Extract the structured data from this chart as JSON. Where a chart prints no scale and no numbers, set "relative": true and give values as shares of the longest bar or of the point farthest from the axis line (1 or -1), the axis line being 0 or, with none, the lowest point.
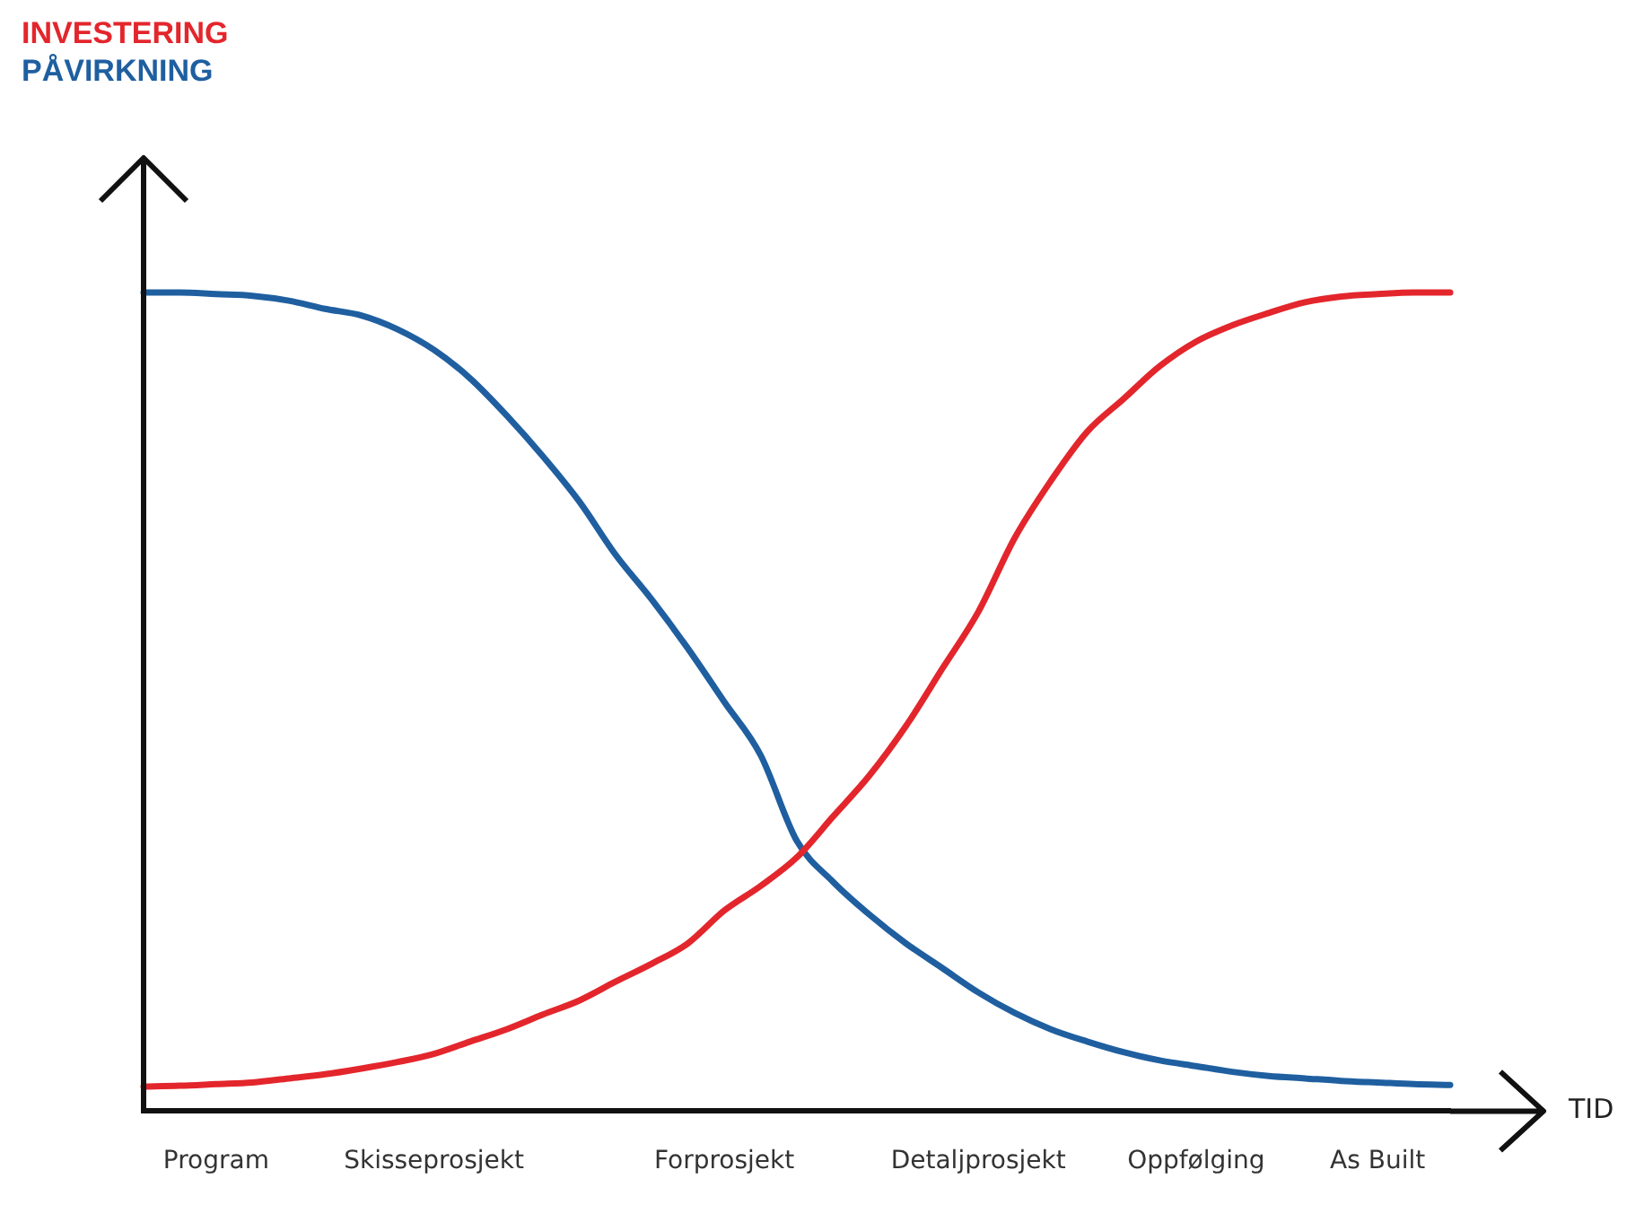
{
  "chart_data": {
    "type": "line",
    "relative": true,
    "xlabel": "TID",
    "categories": [
      null,
      null,
      "Program",
      null,
      null,
      null,
      null,
      null,
      "Skisseprosjekt",
      null,
      null,
      null,
      null,
      null,
      null,
      null,
      "Forprosjekt",
      null,
      null,
      null,
      null,
      null,
      null,
      "Detaljprosjekt",
      null,
      null,
      null,
      null,
      null,
      "Oppfølging",
      null,
      null,
      null,
      null,
      "As Built",
      null,
      null
    ],
    "legend": "top left",
    "grid": false,
    "marker": "none",
    "line_style": "solid",
    "series": [
      {
        "name": "INVESTERING",
        "color": "#e3262c",
        "values": [
          0.03,
          0.031,
          0.033,
          0.035,
          0.04,
          0.045,
          0.052,
          0.06,
          0.07,
          0.085,
          0.1,
          0.118,
          0.135,
          0.158,
          0.18,
          0.205,
          0.245,
          0.275,
          0.31,
          0.36,
          0.41,
          0.47,
          0.54,
          0.61,
          0.7,
          0.77,
          0.83,
          0.87,
          0.91,
          0.94,
          0.96,
          0.975,
          0.988,
          0.995,
          0.998,
          1.0,
          1.0
        ]
      },
      {
        "name": "PÅVIRKNING",
        "color": "#1f5fa0",
        "values": [
          1.0,
          1.0,
          0.998,
          0.996,
          0.99,
          0.98,
          0.972,
          0.955,
          0.93,
          0.895,
          0.85,
          0.8,
          0.745,
          0.68,
          0.625,
          0.565,
          0.5,
          0.435,
          0.33,
          0.28,
          0.24,
          0.205,
          0.175,
          0.145,
          0.12,
          0.1,
          0.085,
          0.072,
          0.062,
          0.055,
          0.048,
          0.043,
          0.04,
          0.037,
          0.035,
          0.033,
          0.032
        ]
      }
    ]
  }
}
